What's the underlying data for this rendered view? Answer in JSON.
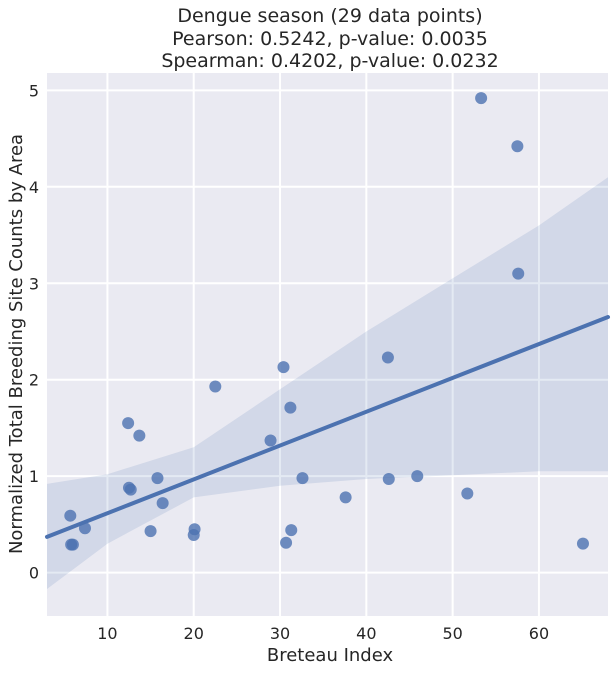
{
  "chart_data": {
    "type": "scatter",
    "title_lines": [
      "Dengue season (29 data points)",
      "Pearson: 0.5242, p-value: 0.0035",
      "Spearman: 0.4202, p-value: 0.0232"
    ],
    "xlabel": "Breteau Index",
    "ylabel": "Normalized Total Breeding Site Counts by Area",
    "xlim": [
      3,
      68
    ],
    "ylim": [
      -0.45,
      5.18
    ],
    "xticks": [
      10,
      20,
      30,
      40,
      50,
      60
    ],
    "yticks": [
      0,
      1,
      2,
      3,
      4,
      5
    ],
    "grid": true,
    "points": [
      {
        "x": 5.7,
        "y": 0.59
      },
      {
        "x": 5.8,
        "y": 0.29
      },
      {
        "x": 6.0,
        "y": 0.29
      },
      {
        "x": 7.4,
        "y": 0.46
      },
      {
        "x": 12.4,
        "y": 1.55
      },
      {
        "x": 12.5,
        "y": 0.88
      },
      {
        "x": 12.7,
        "y": 0.86
      },
      {
        "x": 13.7,
        "y": 1.42
      },
      {
        "x": 15.0,
        "y": 0.43
      },
      {
        "x": 15.8,
        "y": 0.98
      },
      {
        "x": 16.4,
        "y": 0.72
      },
      {
        "x": 20.0,
        "y": 0.39
      },
      {
        "x": 20.1,
        "y": 0.45
      },
      {
        "x": 22.5,
        "y": 1.93
      },
      {
        "x": 28.9,
        "y": 1.37
      },
      {
        "x": 30.4,
        "y": 2.13
      },
      {
        "x": 30.7,
        "y": 0.31
      },
      {
        "x": 31.2,
        "y": 1.71
      },
      {
        "x": 31.3,
        "y": 0.44
      },
      {
        "x": 32.6,
        "y": 0.98
      },
      {
        "x": 37.6,
        "y": 0.78
      },
      {
        "x": 42.5,
        "y": 2.23
      },
      {
        "x": 42.6,
        "y": 0.97
      },
      {
        "x": 45.9,
        "y": 1.0
      },
      {
        "x": 51.7,
        "y": 0.82
      },
      {
        "x": 53.3,
        "y": 4.92
      },
      {
        "x": 57.5,
        "y": 4.42
      },
      {
        "x": 57.6,
        "y": 3.1
      },
      {
        "x": 65.1,
        "y": 0.3
      }
    ],
    "regression_line": {
      "x": [
        3,
        68
      ],
      "y": [
        0.37,
        2.65
      ]
    },
    "confidence_band": {
      "x": [
        3,
        10,
        20,
        30,
        40,
        50,
        60,
        68
      ],
      "upper": [
        0.92,
        1.02,
        1.3,
        1.9,
        2.5,
        3.05,
        3.6,
        4.1
      ],
      "lower": [
        -0.17,
        0.3,
        0.78,
        0.9,
        0.97,
        1.01,
        1.05,
        1.05
      ]
    },
    "colors": {
      "background": "#eaeaf2",
      "grid": "#ffffff",
      "points": "#4c72b0",
      "line": "#4c72b0",
      "band": "#4c72b0"
    }
  }
}
